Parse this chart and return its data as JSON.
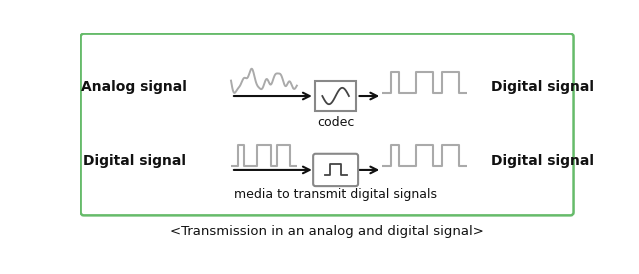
{
  "title": "<Transmission in an analog and digital signal>",
  "bg_color": "#ffffff",
  "border_color": "#66bb6a",
  "row1_label_left": "Analog signal",
  "row1_label_right": "Digital signal",
  "row2_label_left": "Digital signal",
  "row2_label_right": "Digital signal",
  "codec_label": "codec",
  "media_label": "media to transmit digital signals",
  "signal_color": "#aaaaaa",
  "arrow_color": "#111111",
  "text_color": "#111111",
  "box_edge_color": "#888888",
  "label_fontsize": 10,
  "caption_fontsize": 9.5
}
